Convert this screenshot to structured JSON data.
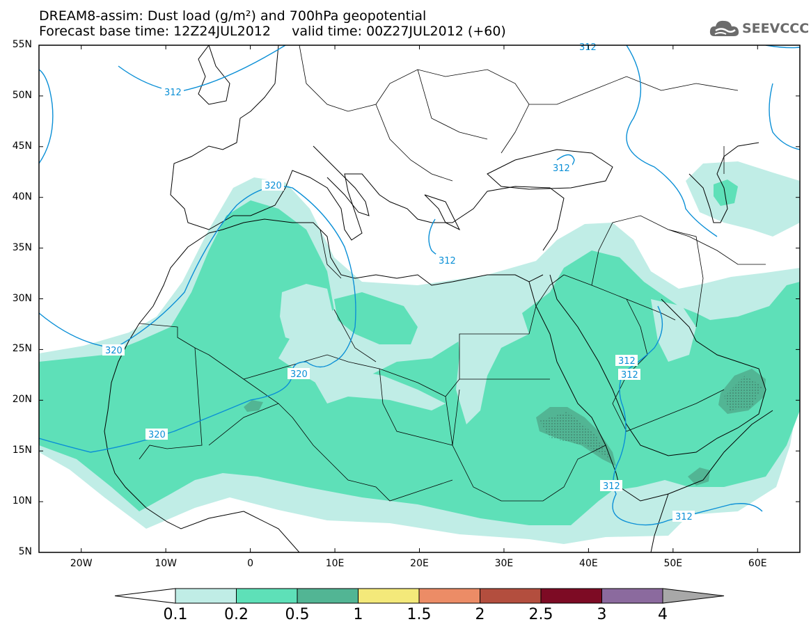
{
  "title": {
    "line1": "DREAM8-assim: Dust load (g/m²) and 700hPa geopotential",
    "line2": "Forecast base time: 12Z24JUL2012     valid time: 00Z27JUL2012 (+60)"
  },
  "logo": {
    "text": "SEEVCCC",
    "icon": "cloud-icon"
  },
  "map": {
    "lat_range": [
      5,
      55
    ],
    "lon_range": [
      -25,
      65
    ],
    "lat_labels": [
      "55N",
      "50N",
      "45N",
      "40N",
      "35N",
      "30N",
      "25N",
      "20N",
      "15N",
      "10N",
      "5N"
    ],
    "lon_labels": [
      "20W",
      "10W",
      "0",
      "10E",
      "20E",
      "30E",
      "40E",
      "50E",
      "60E"
    ]
  },
  "contour_labels": [
    "312",
    "312",
    "312",
    "320",
    "320",
    "320",
    "320",
    "312",
    "312",
    "312",
    "312",
    "312"
  ],
  "colorbar": {
    "ticks": [
      "0.1",
      "0.2",
      "0.5",
      "1",
      "1.5",
      "2",
      "2.5",
      "3",
      "4"
    ],
    "colors": [
      "#ffffff",
      "#c0ede6",
      "#5ee0b8",
      "#52b594",
      "#f4e97a",
      "#ec8c66",
      "#b34e3e",
      "#7d0b24",
      "#8b6a9e",
      "#a8a8a8"
    ]
  },
  "colors": {
    "contour": "#0a8fd6",
    "dust_low": "#c0ede6",
    "dust_mid": "#5ee0b8",
    "dust_high": "#52b594"
  }
}
